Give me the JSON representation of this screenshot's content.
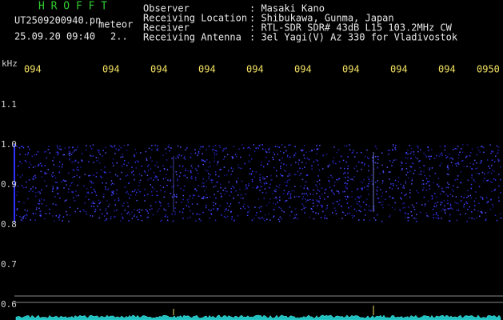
{
  "header": {
    "program": "H R O F F T",
    "file": "UT2509200940.pn",
    "mode": "meteor",
    "datetime": "25.09.20 09:40",
    "page": "2.."
  },
  "station": {
    "rows": [
      {
        "label": "Observer",
        "value": ": Masaki Kano"
      },
      {
        "label": "Receiving Location",
        "value": ": Shibukawa, Gunma, Japan"
      },
      {
        "label": "Receiver",
        "value": ": RTL-SDR SDR# 43dB L15 103.2MHz CW"
      },
      {
        "label": "Receiving Antenna",
        "value": ": 3el Yagi(V) Az 330 for Vladivostok"
      }
    ]
  },
  "axis": {
    "unit": "kHz",
    "x_labels": [
      "094",
      "094",
      "094",
      "094",
      "094",
      "094",
      "094",
      "094",
      "094",
      "0950"
    ],
    "y_labels": [
      "1.1",
      "1.0",
      "0.9",
      "0.8",
      "0.7",
      "0.6"
    ]
  }
}
